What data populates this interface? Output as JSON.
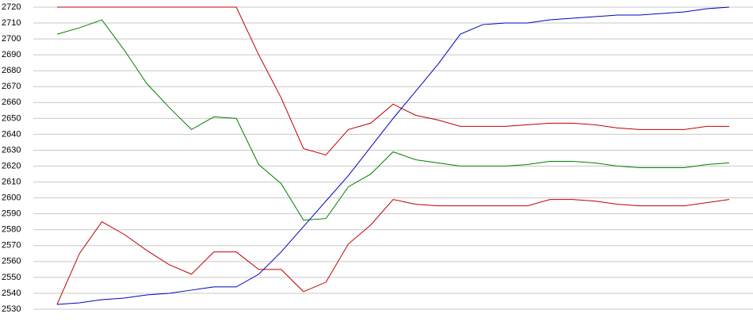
{
  "chart_data": {
    "type": "line",
    "categories": [
      null,
      null,
      null,
      null,
      null,
      null,
      null,
      null,
      null,
      null,
      null,
      null,
      null,
      null,
      null,
      null,
      null,
      null,
      null,
      null,
      null,
      null,
      null,
      null,
      null,
      null,
      null,
      null,
      null,
      null,
      null
    ],
    "series": [
      {
        "color": "#c00000",
        "values": [
          2720,
          2720,
          2720,
          2720,
          2720,
          2720,
          2720,
          2720,
          2720,
          2690,
          2663,
          2631,
          2627,
          2643,
          2647,
          2659,
          2652,
          2649,
          2645,
          2645,
          2645,
          2646,
          2647,
          2647,
          2646,
          2644,
          2643,
          2643,
          2643,
          2645,
          2645
        ]
      },
      {
        "color": "#008000",
        "values": [
          2703,
          2707,
          2712,
          2693,
          2672,
          2657,
          2643,
          2651,
          2650,
          2621,
          2609,
          2586,
          2587,
          2607,
          2615,
          2629,
          2624,
          2622,
          2620,
          2620,
          2620,
          2621,
          2623,
          2623,
          2622,
          2620,
          2619,
          2619,
          2619,
          2621,
          2622
        ]
      },
      {
        "color": "#c00000",
        "values": [
          2533,
          2565,
          2585,
          2577,
          2567,
          2558,
          2552,
          2566,
          2566,
          2555,
          2555,
          2541,
          2547,
          2571,
          2583,
          2599,
          2596,
          2595,
          2595,
          2595,
          2595,
          2595,
          2599,
          2599,
          2598,
          2596,
          2595,
          2595,
          2595,
          2597,
          2599
        ]
      },
      {
        "color": "#0000c0",
        "values": [
          2533,
          2534,
          2536,
          2537,
          2539,
          2540,
          2542,
          2544,
          2544,
          2552,
          2566,
          2582,
          2598,
          2614,
          2632,
          2650,
          2667,
          2684,
          2703,
          2709,
          2710,
          2710,
          2712,
          2713,
          2714,
          2715,
          2715,
          2716,
          2717,
          2719,
          2720
        ]
      }
    ],
    "ylim": [
      2530,
      2720
    ],
    "yticks": [
      2530,
      2540,
      2550,
      2560,
      2570,
      2580,
      2590,
      2600,
      2610,
      2620,
      2630,
      2640,
      2650,
      2660,
      2670,
      2680,
      2690,
      2700,
      2710,
      2720
    ],
    "grid": true
  }
}
